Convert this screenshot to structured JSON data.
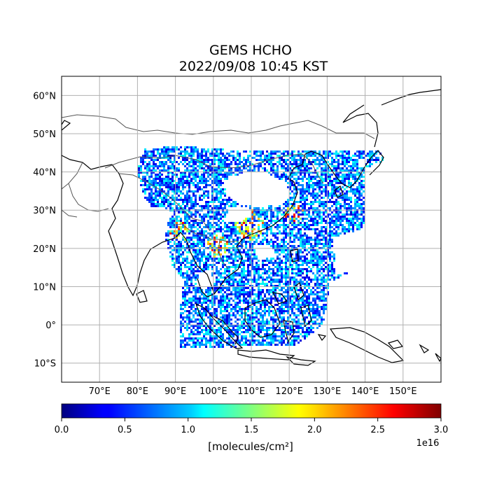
{
  "title": {
    "line1": "GEMS HCHO",
    "line2": "2022/09/08 10:45 KST"
  },
  "map": {
    "extent": {
      "lon_min": 60,
      "lon_max": 160,
      "lat_min": -15,
      "lat_max": 65
    },
    "grid": true,
    "lon_ticks": [
      {
        "value": 70,
        "label": "70°E"
      },
      {
        "value": 80,
        "label": "80°E"
      },
      {
        "value": 90,
        "label": "90°E"
      },
      {
        "value": 100,
        "label": "100°E"
      },
      {
        "value": 110,
        "label": "110°E"
      },
      {
        "value": 120,
        "label": "120°E"
      },
      {
        "value": 130,
        "label": "130°E"
      },
      {
        "value": 140,
        "label": "140°E"
      },
      {
        "value": 150,
        "label": "150°E"
      }
    ],
    "lat_ticks": [
      {
        "value": 60,
        "label": "60°N"
      },
      {
        "value": 50,
        "label": "50°N"
      },
      {
        "value": 40,
        "label": "40°N"
      },
      {
        "value": 30,
        "label": "30°N"
      },
      {
        "value": 20,
        "label": "20°N"
      },
      {
        "value": 10,
        "label": "10°N"
      },
      {
        "value": 0,
        "label": "0°"
      },
      {
        "value": -10,
        "label": "10°S"
      }
    ]
  },
  "colorbar": {
    "colormap": "jet",
    "vmin": 0.0,
    "vmax": 3.0,
    "ticks": [
      "0.0",
      "0.5",
      "1.0",
      "1.5",
      "2.0",
      "2.5",
      "3.0"
    ],
    "unit_label": "[molecules/cm²]",
    "exponent_label": "1e16"
  }
}
